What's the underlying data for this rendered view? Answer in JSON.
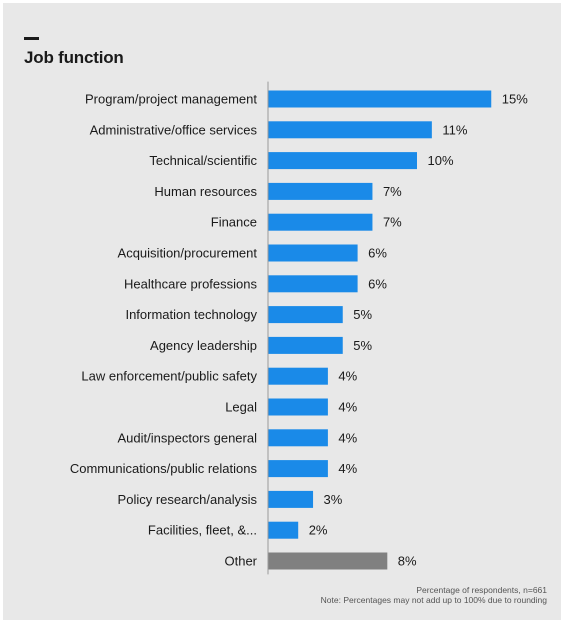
{
  "header": {
    "title": "Job function"
  },
  "chart_data": {
    "type": "bar",
    "orientation": "horizontal",
    "title": "Job function",
    "categories": [
      "Program/project management",
      "Administrative/office services",
      "Technical/scientific",
      "Human resources",
      "Finance",
      "Acquisition/procurement",
      "Healthcare professions",
      "Information technology",
      "Agency leadership",
      "Law enforcement/public safety",
      "Legal",
      "Audit/inspectors general",
      "Communications/public relations",
      "Policy research/analysis",
      "Facilities, fleet, &...",
      "Other"
    ],
    "values": [
      15,
      11,
      10,
      7,
      7,
      6,
      6,
      5,
      5,
      4,
      4,
      4,
      4,
      3,
      2,
      8
    ],
    "value_labels": [
      "15%",
      "11%",
      "10%",
      "7%",
      "7%",
      "6%",
      "6%",
      "5%",
      "5%",
      "4%",
      "4%",
      "4%",
      "4%",
      "3%",
      "2%",
      "8%"
    ],
    "units": "%",
    "grid": false,
    "legend": "none",
    "colors": {
      "primary": "#1a8ae8",
      "other": "#808080"
    },
    "highlight_gray_category": "Other"
  },
  "footnote": {
    "line1": "Percentage of respondents, n=661",
    "line2": "Note: Percentages may not add up to 100% due to rounding"
  }
}
